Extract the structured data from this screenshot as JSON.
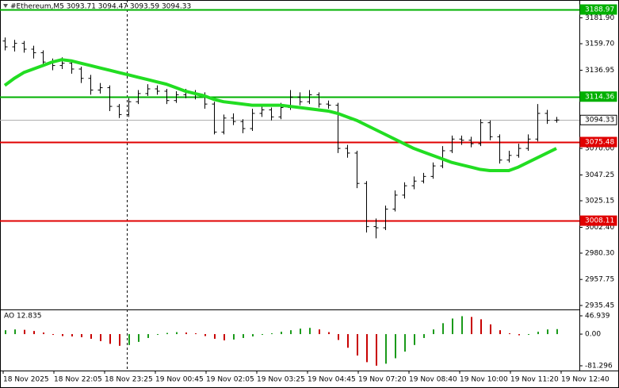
{
  "chart_data": [
    {
      "type": "candlestick",
      "title": "#Ethereum,M5  3093.71 3094.47 3093.59 3094.33",
      "open": [
        3162,
        3157,
        3160,
        3155,
        3152,
        3144,
        3141,
        3143,
        3138,
        3130,
        3120,
        3122,
        3106,
        3099,
        3110,
        3117,
        3121,
        3119,
        3111,
        3116,
        3118,
        3116,
        3108,
        3084,
        3096,
        3093,
        3087,
        3100,
        3103,
        3097,
        3105,
        3114,
        3110,
        3116,
        3108,
        3107,
        3070,
        3066,
        3040,
        3003,
        3002,
        3018,
        3030,
        3038,
        3042,
        3046,
        3055,
        3068,
        3078,
        3077,
        3074,
        3092,
        3080,
        3060,
        3064,
        3070,
        3078,
        3100,
        3094
      ],
      "high": [
        3165,
        3163,
        3162,
        3158,
        3154,
        3147,
        3148,
        3145,
        3140,
        3133,
        3126,
        3124,
        3108,
        3113,
        3120,
        3125,
        3124,
        3121,
        3119,
        3121,
        3120,
        3118,
        3110,
        3099,
        3100,
        3095,
        3104,
        3106,
        3105,
        3109,
        3120,
        3118,
        3120,
        3118,
        3111,
        3109,
        3073,
        3068,
        3042,
        3010,
        3021,
        3034,
        3041,
        3046,
        3049,
        3058,
        3072,
        3081,
        3081,
        3080,
        3095,
        3094,
        3082,
        3068,
        3074,
        3082,
        3108,
        3103,
        3097
      ],
      "low": [
        3154,
        3153,
        3152,
        3147,
        3141,
        3137,
        3138,
        3134,
        3126,
        3116,
        3117,
        3102,
        3096,
        3097,
        3108,
        3115,
        3116,
        3108,
        3109,
        3113,
        3112,
        3104,
        3082,
        3082,
        3090,
        3083,
        3085,
        3097,
        3094,
        3095,
        3103,
        3107,
        3108,
        3105,
        3104,
        3066,
        3062,
        3036,
        2998,
        2993,
        3000,
        3016,
        3027,
        3035,
        3040,
        3044,
        3053,
        3066,
        3073,
        3071,
        3072,
        3077,
        3057,
        3058,
        3062,
        3068,
        3076,
        3091,
        3092
      ],
      "close": [
        3157,
        3160,
        3155,
        3152,
        3144,
        3141,
        3143,
        3138,
        3130,
        3120,
        3122,
        3106,
        3099,
        3110,
        3117,
        3121,
        3119,
        3111,
        3116,
        3118,
        3116,
        3108,
        3084,
        3096,
        3093,
        3087,
        3100,
        3103,
        3097,
        3105,
        3114,
        3110,
        3116,
        3108,
        3107,
        3070,
        3066,
        3040,
        3003,
        3002,
        3018,
        3030,
        3038,
        3042,
        3046,
        3055,
        3068,
        3078,
        3077,
        3074,
        3092,
        3080,
        3060,
        3064,
        3070,
        3078,
        3100,
        3094,
        3094.33
      ],
      "ma": [
        3124,
        3130,
        3135,
        3138,
        3141,
        3144,
        3146,
        3145,
        3143,
        3141,
        3139,
        3137,
        3135,
        3133,
        3131,
        3129,
        3127,
        3125,
        3122,
        3119,
        3117,
        3115,
        3112,
        3110,
        3109,
        3108,
        3107,
        3107,
        3107,
        3107,
        3106,
        3105,
        3104,
        3103,
        3102,
        3100,
        3097,
        3094,
        3090,
        3086,
        3082,
        3078,
        3074,
        3070,
        3067,
        3064,
        3061,
        3058,
        3056,
        3054,
        3052,
        3051,
        3051,
        3051,
        3054,
        3058,
        3062,
        3066,
        3070
      ],
      "color": "#000000",
      "ma_color": "#22dd22",
      "ylim": [
        2932.05,
        3197.13
      ],
      "yticks": [
        {
          "value": 3181.9,
          "label": "3181.90"
        },
        {
          "value": 3159.7,
          "label": "3159.70"
        },
        {
          "value": 3136.95,
          "label": "3136.95"
        },
        {
          "value": 3070,
          "label": "3070.00"
        },
        {
          "value": 3047.25,
          "label": "3047.25"
        },
        {
          "value": 3025.15,
          "label": "3025.15"
        },
        {
          "value": 3002.4,
          "label": "3002.40"
        },
        {
          "value": 2980.3,
          "label": "2980.30"
        },
        {
          "value": 2957.75,
          "label": "2957.75"
        },
        {
          "value": 2935.45,
          "label": "2935.45"
        }
      ],
      "levels": [
        {
          "value": 3188.97,
          "color": "#00b000"
        },
        {
          "value": 3114.36,
          "color": "#00b000"
        },
        {
          "value": 3094.33,
          "color": "#b0b0b0"
        },
        {
          "value": 3075.48,
          "color": "#e00000"
        },
        {
          "value": 3008.11,
          "color": "#e00000"
        }
      ],
      "x_labels": [
        "18 Nov 2025",
        "18 Nov 22:05",
        "18 Nov 23:25",
        "19 Nov 00:45",
        "19 Nov 02:05",
        "19 Nov 03:25",
        "19 Nov 04:45",
        "19 Nov 07:20",
        "19 Nov 08:40",
        "19 Nov 10:00",
        "19 Nov 11:20",
        "19 Nov 12:40"
      ]
    },
    {
      "type": "bar",
      "title": "AO 12.835",
      "values": [
        10,
        12,
        11,
        8,
        4,
        -2,
        -5,
        -6,
        -8,
        -12,
        -18,
        -25,
        -30,
        -28,
        -20,
        -10,
        -2,
        3,
        5,
        4,
        2,
        -5,
        -12,
        -16,
        -14,
        -10,
        -6,
        -2,
        2,
        6,
        10,
        14,
        16,
        12,
        5,
        -15,
        -35,
        -55,
        -72,
        -81,
        -76,
        -62,
        -45,
        -28,
        -10,
        12,
        28,
        40,
        46,
        44,
        38,
        25,
        10,
        2,
        -3,
        -2,
        6,
        12,
        12.835
      ],
      "up_color": "#1a9a1a",
      "down_color": "#c80000",
      "ylim": [
        -91.5,
        59.2
      ],
      "yticks": [
        46.939,
        {
          "value": 0,
          "label": "0.00"
        },
        -81.296
      ]
    }
  ]
}
